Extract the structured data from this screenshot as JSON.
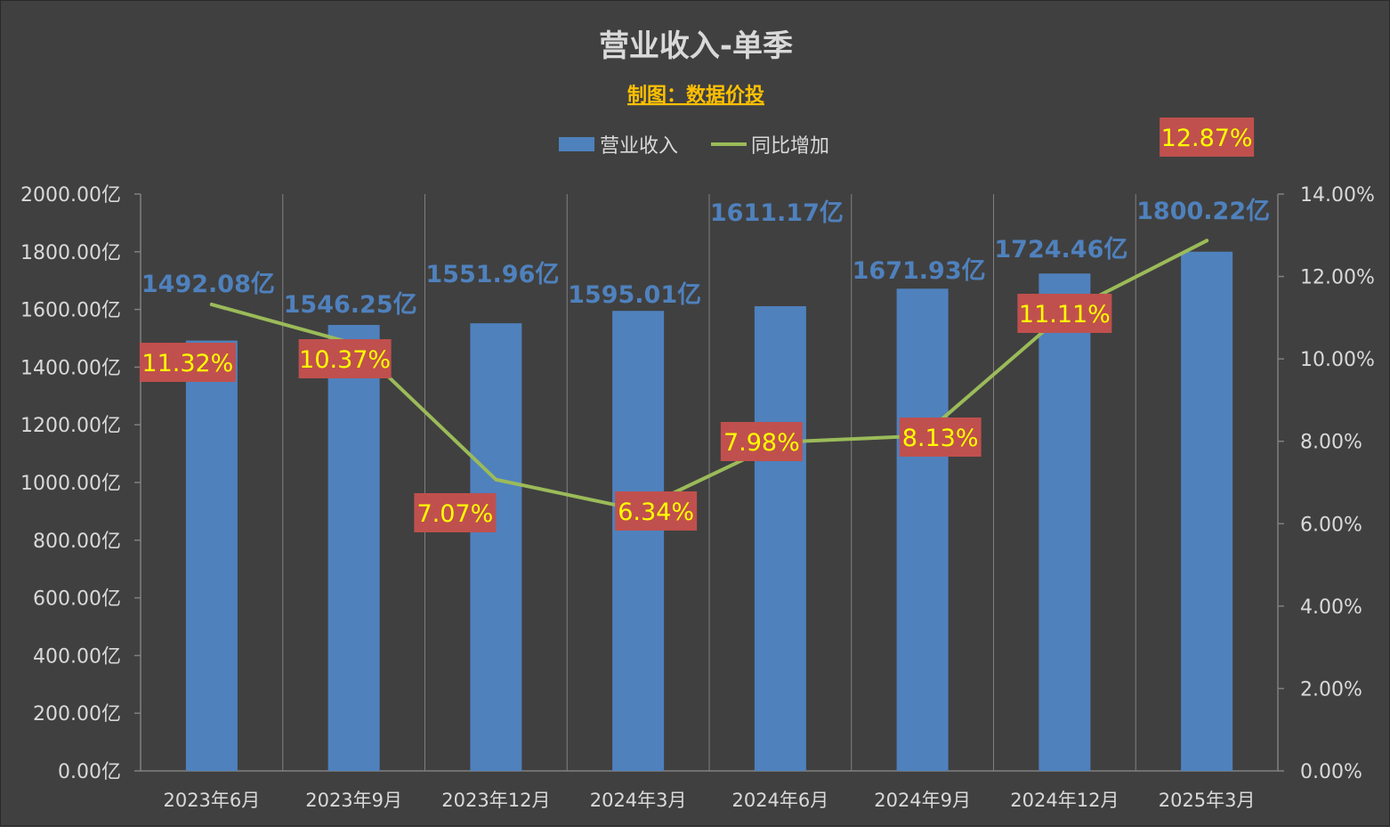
{
  "chart_data": {
    "type": "bar",
    "title": "营业收入-单季",
    "subtitle": "制图：数据价投",
    "categories": [
      "2023年6月",
      "2023年9月",
      "2023年12月",
      "2024年3月",
      "2024年6月",
      "2024年9月",
      "2024年12月",
      "2025年3月"
    ],
    "series": [
      {
        "name": "营业收入",
        "type": "bar",
        "axis": "left",
        "values": [
          1492.08,
          1546.25,
          1551.96,
          1595.01,
          1611.17,
          1671.93,
          1724.46,
          1800.22
        ],
        "labels": [
          "1492.08亿",
          "1546.25亿",
          "1551.96亿",
          "1595.01亿",
          "1611.17亿",
          "1671.93亿",
          "1724.46亿",
          "1800.22亿"
        ]
      },
      {
        "name": "同比增加",
        "type": "line",
        "axis": "right",
        "values": [
          11.32,
          10.37,
          7.07,
          6.34,
          7.98,
          8.13,
          11.11,
          12.87
        ],
        "labels": [
          "11.32%",
          "10.37%",
          "7.07%",
          "6.34%",
          "7.98%",
          "8.13%",
          "11.11%",
          "12.87%"
        ]
      }
    ],
    "y_left": {
      "ylim": [
        0,
        2000
      ],
      "ticks": [
        0,
        200,
        400,
        600,
        800,
        1000,
        1200,
        1400,
        1600,
        1800,
        2000
      ],
      "tick_labels": [
        "0.00亿",
        "200.00亿",
        "400.00亿",
        "600.00亿",
        "800.00亿",
        "1000.00亿",
        "1200.00亿",
        "1400.00亿",
        "1600.00亿",
        "1800.00亿",
        "2000.00亿"
      ]
    },
    "y_right": {
      "ylim": [
        0,
        14
      ],
      "ticks": [
        0,
        2,
        4,
        6,
        8,
        10,
        12,
        14
      ],
      "tick_labels": [
        "0.00%",
        "2.00%",
        "4.00%",
        "6.00%",
        "8.00%",
        "10.00%",
        "12.00%",
        "14.00%"
      ]
    },
    "grid": "vertical",
    "legend": "top-center"
  },
  "colors": {
    "background": "#404040",
    "bar": "#4f81bd",
    "line": "#9bbb59",
    "bar_label": "#4f81bd",
    "line_label_bg": "#c0504d",
    "line_label_text": "#ffff00",
    "title": "#d9d9d9",
    "subtitle": "#ffc000",
    "axis_text": "#d9d9d9",
    "grid": "#808080"
  }
}
